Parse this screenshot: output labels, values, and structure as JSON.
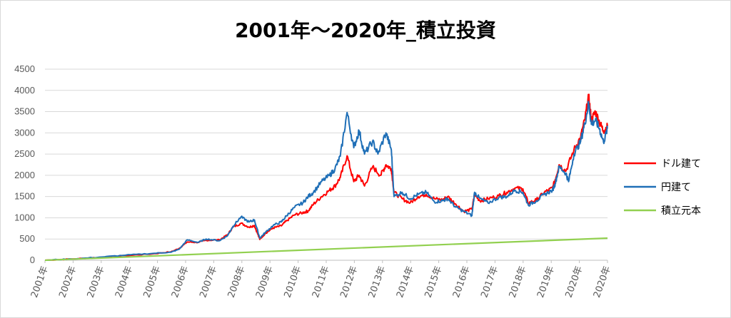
{
  "chart_data": {
    "type": "line",
    "title": "2001年～2020年_積立投資",
    "xlabel": "",
    "ylabel": "",
    "ylim": [
      0,
      4500
    ],
    "y_ticks": [
      0,
      500,
      1000,
      1500,
      2000,
      2500,
      3000,
      3500,
      4000,
      4500
    ],
    "x_tick_labels": [
      "2001年",
      "2002年",
      "2003年",
      "2004年",
      "2005年",
      "2006年",
      "2007年",
      "2008年",
      "2009年",
      "2010年",
      "2011年",
      "2012年",
      "2013年",
      "2014年",
      "2015年",
      "2016年",
      "2017年",
      "2018年",
      "2019年",
      "2020年",
      "2020年"
    ],
    "grid": true,
    "legend_position": "right",
    "series": [
      {
        "name": "ドル建て",
        "color": "#ff0000",
        "points": [
          [
            2001.0,
            0
          ],
          [
            2002.0,
            30
          ],
          [
            2003.0,
            65
          ],
          [
            2004.0,
            110
          ],
          [
            2005.0,
            150
          ],
          [
            2005.7,
            200
          ],
          [
            2006.0,
            280
          ],
          [
            2006.3,
            430
          ],
          [
            2006.7,
            420
          ],
          [
            2007.0,
            470
          ],
          [
            2007.5,
            480
          ],
          [
            2007.8,
            600
          ],
          [
            2008.0,
            780
          ],
          [
            2008.3,
            870
          ],
          [
            2008.6,
            780
          ],
          [
            2008.8,
            820
          ],
          [
            2009.0,
            490
          ],
          [
            2009.2,
            630
          ],
          [
            2009.5,
            760
          ],
          [
            2009.8,
            810
          ],
          [
            2010.0,
            930
          ],
          [
            2010.3,
            1070
          ],
          [
            2010.6,
            1120
          ],
          [
            2010.8,
            1160
          ],
          [
            2011.0,
            1320
          ],
          [
            2011.3,
            1500
          ],
          [
            2011.6,
            1650
          ],
          [
            2011.8,
            1750
          ],
          [
            2012.0,
            1950
          ],
          [
            2012.25,
            2460
          ],
          [
            2012.5,
            1850
          ],
          [
            2012.7,
            2000
          ],
          [
            2012.9,
            1750
          ],
          [
            2013.2,
            2200
          ],
          [
            2013.5,
            2000
          ],
          [
            2013.7,
            2250
          ],
          [
            2013.9,
            2150
          ],
          [
            2014.0,
            1600
          ],
          [
            2014.3,
            1450
          ],
          [
            2014.6,
            1350
          ],
          [
            2014.9,
            1500
          ],
          [
            2015.2,
            1550
          ],
          [
            2015.5,
            1450
          ],
          [
            2015.8,
            1420
          ],
          [
            2016.0,
            1500
          ],
          [
            2016.3,
            1320
          ],
          [
            2016.6,
            1150
          ],
          [
            2016.9,
            1200
          ],
          [
            2017.0,
            1550
          ],
          [
            2017.2,
            1400
          ],
          [
            2017.5,
            1450
          ],
          [
            2017.9,
            1520
          ],
          [
            2018.2,
            1600
          ],
          [
            2018.5,
            1700
          ],
          [
            2018.8,
            1680
          ],
          [
            2019.0,
            1350
          ],
          [
            2019.3,
            1420
          ],
          [
            2019.6,
            1600
          ],
          [
            2019.9,
            1700
          ],
          [
            2020.0,
            1900
          ],
          [
            2020.15,
            2250
          ],
          [
            2020.4,
            2100
          ],
          [
            2020.7,
            2600
          ],
          [
            2020.95,
            2900
          ],
          [
            2021.1,
            3300
          ],
          [
            2021.25,
            3850
          ],
          [
            2021.35,
            3300
          ],
          [
            2021.5,
            3500
          ],
          [
            2021.65,
            3250
          ],
          [
            2021.8,
            3050
          ],
          [
            2021.95,
            3150
          ]
        ]
      },
      {
        "name": "円建て",
        "color": "#1f6fb7",
        "points": [
          [
            2001.0,
            0
          ],
          [
            2002.0,
            30
          ],
          [
            2003.0,
            70
          ],
          [
            2004.0,
            120
          ],
          [
            2005.0,
            160
          ],
          [
            2005.7,
            190
          ],
          [
            2006.0,
            260
          ],
          [
            2006.3,
            480
          ],
          [
            2006.7,
            420
          ],
          [
            2007.0,
            500
          ],
          [
            2007.5,
            460
          ],
          [
            2007.8,
            580
          ],
          [
            2008.0,
            800
          ],
          [
            2008.3,
            1020
          ],
          [
            2008.6,
            900
          ],
          [
            2008.8,
            950
          ],
          [
            2009.0,
            520
          ],
          [
            2009.2,
            650
          ],
          [
            2009.5,
            820
          ],
          [
            2009.8,
            900
          ],
          [
            2010.0,
            1050
          ],
          [
            2010.3,
            1250
          ],
          [
            2010.6,
            1350
          ],
          [
            2010.8,
            1500
          ],
          [
            2011.0,
            1600
          ],
          [
            2011.3,
            1850
          ],
          [
            2011.6,
            2000
          ],
          [
            2011.8,
            2150
          ],
          [
            2012.0,
            2450
          ],
          [
            2012.25,
            3480
          ],
          [
            2012.5,
            2650
          ],
          [
            2012.7,
            3050
          ],
          [
            2012.9,
            2500
          ],
          [
            2013.2,
            2800
          ],
          [
            2013.4,
            2500
          ],
          [
            2013.7,
            3000
          ],
          [
            2013.9,
            2600
          ],
          [
            2014.0,
            1500
          ],
          [
            2014.3,
            1600
          ],
          [
            2014.6,
            1450
          ],
          [
            2014.9,
            1550
          ],
          [
            2015.2,
            1600
          ],
          [
            2015.5,
            1380
          ],
          [
            2015.8,
            1400
          ],
          [
            2016.0,
            1450
          ],
          [
            2016.3,
            1250
          ],
          [
            2016.6,
            1150
          ],
          [
            2016.9,
            1050
          ],
          [
            2017.0,
            1600
          ],
          [
            2017.2,
            1450
          ],
          [
            2017.5,
            1350
          ],
          [
            2017.9,
            1480
          ],
          [
            2018.2,
            1500
          ],
          [
            2018.5,
            1650
          ],
          [
            2018.8,
            1600
          ],
          [
            2019.0,
            1300
          ],
          [
            2019.3,
            1400
          ],
          [
            2019.6,
            1550
          ],
          [
            2019.9,
            1650
          ],
          [
            2020.0,
            1800
          ],
          [
            2020.15,
            2200
          ],
          [
            2020.4,
            2050
          ],
          [
            2020.5,
            1850
          ],
          [
            2020.7,
            2500
          ],
          [
            2020.95,
            2800
          ],
          [
            2021.1,
            3200
          ],
          [
            2021.25,
            3700
          ],
          [
            2021.35,
            3200
          ],
          [
            2021.5,
            3300
          ],
          [
            2021.65,
            3100
          ],
          [
            2021.8,
            2780
          ],
          [
            2021.95,
            3100
          ]
        ]
      },
      {
        "name": "積立元本",
        "color": "#92d050",
        "points": [
          [
            2001.0,
            0
          ],
          [
            2021.95,
            520
          ]
        ]
      }
    ]
  }
}
